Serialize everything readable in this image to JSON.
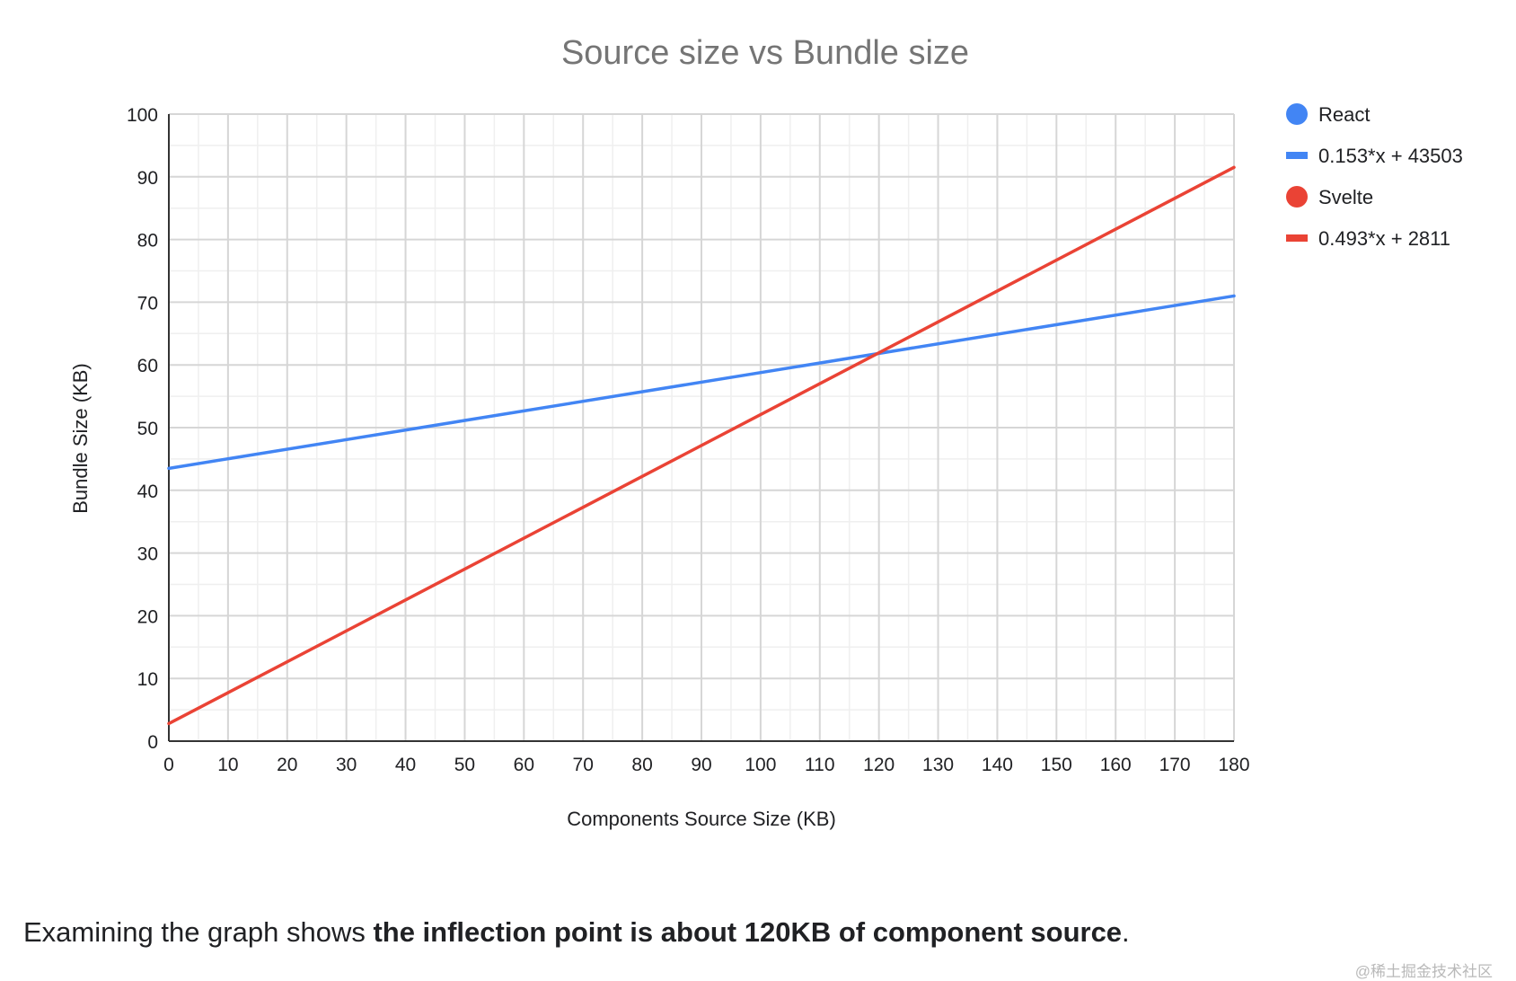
{
  "chart_data": {
    "type": "line",
    "title": "Source size vs Bundle size",
    "xlabel": "Components Source Size (KB)",
    "ylabel": "Bundle Size (KB)",
    "xlim": [
      0,
      180
    ],
    "ylim": [
      0,
      100
    ],
    "x_ticks": [
      0,
      10,
      20,
      30,
      40,
      50,
      60,
      70,
      80,
      90,
      100,
      110,
      120,
      130,
      140,
      150,
      160,
      170,
      180
    ],
    "y_ticks": [
      0,
      10,
      20,
      30,
      40,
      50,
      60,
      70,
      80,
      90,
      100
    ],
    "grid": true,
    "legend_position": "right",
    "series": [
      {
        "name": "React",
        "legend_marker": "dot",
        "color": "#4285f4",
        "x": [],
        "y": []
      },
      {
        "name": "0.153*x + 43503",
        "legend_marker": "line",
        "color": "#4285f4",
        "x": [
          0,
          180
        ],
        "y": [
          43.5,
          71.0
        ]
      },
      {
        "name": "Svelte",
        "legend_marker": "dot",
        "color": "#ea4335",
        "x": [],
        "y": []
      },
      {
        "name": "0.493*x + 2811",
        "legend_marker": "line",
        "color": "#ea4335",
        "x": [
          0,
          180
        ],
        "y": [
          2.8,
          91.5
        ]
      }
    ]
  },
  "caption": {
    "prefix": "Examining the graph shows ",
    "bold": "the inflection point is about 120KB of component source",
    "suffix": "."
  },
  "watermark": "@稀土掘金技术社区"
}
